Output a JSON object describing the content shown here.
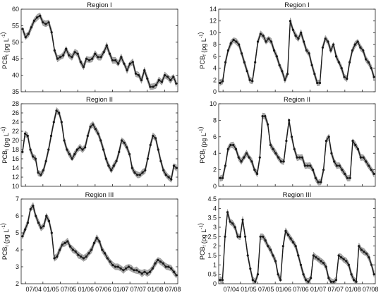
{
  "chart_data": [
    {
      "type": "line",
      "title": "Region I",
      "ylabel": "PCB_t (pg L^-1)",
      "ylim": [
        35,
        60
      ],
      "yticks": [
        35,
        40,
        45,
        50,
        55,
        60
      ],
      "xticklabels": [],
      "grid": false,
      "series": [
        {
          "values": [
            54.0,
            51.5,
            52.5,
            54.5,
            56.5,
            57.5,
            58.0,
            56.0,
            55.5,
            56.0,
            53.0,
            47.5,
            45.0,
            45.5,
            46.0,
            48.0,
            46.0,
            45.5,
            47.0,
            46.5,
            44.0,
            42.5,
            45.0,
            44.5,
            45.0,
            46.5,
            45.5,
            45.5,
            47.0,
            49.0,
            46.5,
            44.5,
            44.5,
            43.5,
            45.5,
            43.5,
            41.5,
            43.5,
            44.0,
            40.5,
            40.0,
            38.5,
            41.5,
            39.0,
            36.5,
            36.5,
            37.0,
            38.5,
            38.0,
            40.0,
            39.5,
            38.5,
            39.5,
            37.5
          ]
        }
      ]
    },
    {
      "type": "line",
      "title": "Region I",
      "ylabel": "PCB_f (pg L^-1)",
      "ylim": [
        0,
        14
      ],
      "yticks": [
        0,
        2,
        4,
        6,
        8,
        10,
        12,
        14
      ],
      "xticklabels": [],
      "grid": false,
      "series": [
        {
          "values": [
            1.5,
            1.8,
            5.0,
            7.0,
            8.2,
            8.8,
            8.5,
            8.0,
            6.5,
            5.0,
            3.5,
            2.0,
            1.8,
            5.0,
            8.5,
            9.8,
            9.5,
            8.5,
            9.0,
            8.5,
            7.0,
            6.0,
            4.5,
            3.5,
            2.0,
            3.0,
            12.0,
            10.5,
            9.5,
            9.0,
            10.0,
            8.5,
            7.0,
            6.5,
            4.5,
            3.0,
            1.5,
            1.5,
            7.5,
            9.0,
            8.5,
            7.0,
            8.0,
            6.0,
            5.0,
            4.0,
            2.5,
            2.2,
            5.0,
            7.0,
            8.0,
            8.5,
            7.5,
            7.0,
            5.5,
            5.0,
            4.0,
            2.5
          ]
        }
      ]
    },
    {
      "type": "line",
      "title": "Region II",
      "ylabel": "PCB_t (pg L^-1)",
      "ylim": [
        10,
        28
      ],
      "yticks": [
        10,
        12,
        14,
        16,
        18,
        20,
        22,
        24,
        26,
        28
      ],
      "xticklabels": [],
      "grid": false,
      "series": [
        {
          "values": [
            17.5,
            21.5,
            21.0,
            18.0,
            16.5,
            16.0,
            13.0,
            12.5,
            13.5,
            15.5,
            18.0,
            21.0,
            24.0,
            26.5,
            26.0,
            24.0,
            20.0,
            18.0,
            17.0,
            16.0,
            17.0,
            18.0,
            18.5,
            18.0,
            18.5,
            21.0,
            23.0,
            23.5,
            22.5,
            21.5,
            20.0,
            18.0,
            16.0,
            14.5,
            13.5,
            14.5,
            15.5,
            17.5,
            20.0,
            19.5,
            18.5,
            17.0,
            14.0,
            13.0,
            12.5,
            12.5,
            13.0,
            13.5,
            16.0,
            19.0,
            21.0,
            20.5,
            18.0,
            15.5,
            13.5,
            12.5,
            12.0,
            11.5,
            14.5,
            14.0
          ]
        }
      ]
    },
    {
      "type": "line",
      "title": "Region II",
      "ylabel": "PCB_f (pg L^-1)",
      "ylim": [
        0,
        10
      ],
      "yticks": [
        0,
        2,
        4,
        6,
        8,
        10
      ],
      "xticklabels": [],
      "grid": false,
      "series": [
        {
          "values": [
            1.0,
            1.0,
            2.5,
            4.5,
            5.0,
            5.0,
            4.5,
            3.5,
            3.0,
            3.5,
            4.0,
            3.5,
            3.0,
            2.0,
            1.5,
            3.5,
            8.5,
            8.5,
            7.5,
            5.0,
            4.5,
            4.0,
            3.5,
            3.0,
            3.0,
            5.5,
            8.0,
            6.0,
            4.5,
            3.5,
            3.5,
            3.5,
            2.5,
            2.5,
            2.5,
            2.0,
            1.0,
            0.5,
            0.5,
            2.0,
            5.5,
            6.0,
            4.0,
            3.0,
            2.5,
            2.5,
            2.0,
            1.5,
            1.0,
            1.0,
            5.5,
            5.0,
            4.5,
            3.5,
            3.5,
            3.0,
            2.5,
            2.0,
            1.5
          ]
        }
      ]
    },
    {
      "type": "line",
      "title": "Region III",
      "ylabel": "PCB_t (pg L^-1)",
      "ylim": [
        2,
        7
      ],
      "yticks": [
        2,
        3,
        4,
        5,
        6,
        7
      ],
      "xticklabels": [
        "07/04",
        "01/05",
        "07/05",
        "01/06",
        "07/06",
        "01/07",
        "07/07",
        "01/08",
        "07/08"
      ],
      "grid": false,
      "series": [
        {
          "values": [
            4.8,
            5.2,
            5.6,
            6.4,
            6.6,
            6.0,
            5.6,
            5.3,
            5.4,
            6.0,
            5.7,
            5.0,
            3.5,
            3.6,
            4.0,
            4.3,
            4.4,
            4.5,
            4.2,
            4.0,
            3.9,
            3.7,
            3.6,
            3.5,
            3.6,
            3.8,
            4.0,
            4.4,
            4.7,
            4.5,
            4.0,
            3.8,
            3.5,
            3.3,
            3.1,
            3.0,
            3.0,
            2.9,
            2.8,
            2.9,
            3.0,
            2.9,
            2.8,
            2.8,
            2.7,
            2.6,
            2.7,
            2.6,
            2.7,
            2.9,
            3.2,
            3.4,
            3.3,
            3.2,
            3.0,
            3.0,
            2.9,
            2.7,
            2.5
          ]
        }
      ]
    },
    {
      "type": "line",
      "title": "Region III",
      "ylabel": "PCB_f (pg L^-1)",
      "ylim": [
        0,
        4.5
      ],
      "yticks": [
        0,
        0.5,
        1,
        1.5,
        2,
        2.5,
        3,
        3.5,
        4,
        4.5
      ],
      "xticklabels": [
        "07/04",
        "01/05",
        "07/05",
        "01/06",
        "07/06",
        "01/07",
        "07/07",
        "01/08",
        "07/08"
      ],
      "grid": false,
      "series": [
        {
          "values": [
            0.2,
            0.2,
            2.5,
            3.8,
            3.3,
            3.2,
            3.0,
            2.5,
            2.5,
            3.4,
            2.5,
            1.5,
            0.8,
            0.2,
            0.1,
            0.5,
            2.5,
            2.5,
            2.3,
            2.0,
            1.8,
            1.5,
            1.2,
            0.5,
            0.2,
            2.0,
            2.8,
            2.6,
            2.4,
            2.2,
            2.0,
            1.5,
            1.0,
            0.5,
            0.2,
            0.1,
            0.3,
            1.5,
            1.4,
            1.3,
            1.2,
            1.1,
            0.9,
            0.3,
            0.1,
            0.1,
            0.2,
            1.5,
            1.4,
            1.3,
            1.2,
            1.0,
            0.5,
            0.2,
            0.1,
            2.0,
            1.8,
            1.7,
            1.6,
            1.4,
            1.0,
            0.5
          ]
        }
      ]
    }
  ],
  "colors": {
    "line": "#1a1a1a",
    "marker": "#1a1a1a",
    "band": "#a9a9a9",
    "axis": "#222222"
  }
}
